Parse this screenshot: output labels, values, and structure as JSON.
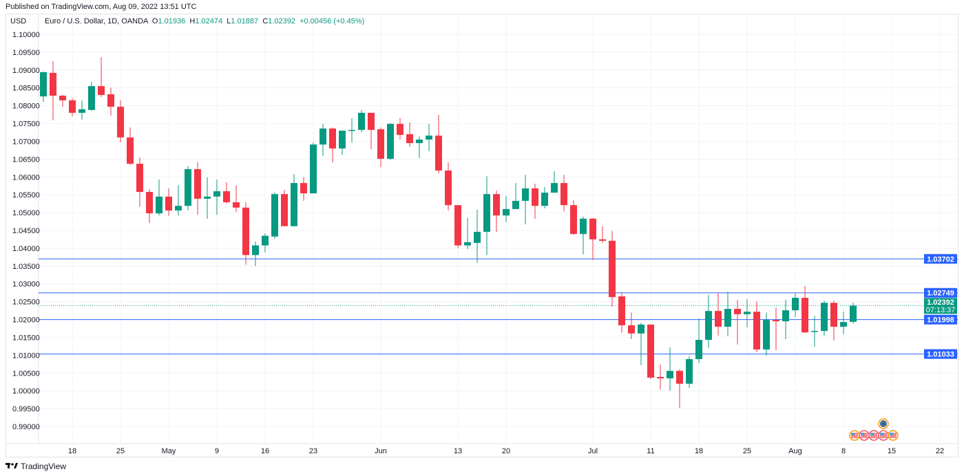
{
  "published": "Published on TradingView.com, Aug 09, 2022 13:51 UTC",
  "legend": {
    "currency": "USD",
    "symbol": "Euro / U.S. Dollar, 1D, OANDA",
    "o_label": "O",
    "o": "1.01936",
    "h_label": "H",
    "h": "1.02474",
    "l_label": "L",
    "l": "1.01887",
    "c_label": "C",
    "c": "1.02392",
    "change": "+0.00456 (+0.45%)"
  },
  "footer": {
    "brand": "TradingView",
    "logo_icon": "tradingview-logo-icon"
  },
  "colors": {
    "up": "#089981",
    "down": "#f23645",
    "level": "#2962ff",
    "grid": "#f0f3fa"
  },
  "chart_data": {
    "type": "candlestick",
    "title": "Euro / U.S. Dollar, 1D, OANDA",
    "ylabel": "USD",
    "ylim": [
      0.99,
      1.1
    ],
    "yticks": [
      "1.10000",
      "1.09500",
      "1.09000",
      "1.08500",
      "1.08000",
      "1.07500",
      "1.07000",
      "1.06500",
      "1.06000",
      "1.05500",
      "1.05000",
      "1.04500",
      "1.04000",
      "1.03500",
      "1.03000",
      "1.02500",
      "1.02000",
      "1.01500",
      "1.01000",
      "1.00500",
      "1.00000",
      "0.99500",
      "0.99000"
    ],
    "xticks": [
      {
        "label": "18",
        "bar": 3
      },
      {
        "label": "25",
        "bar": 8
      },
      {
        "label": "May",
        "bar": 13
      },
      {
        "label": "9",
        "bar": 18
      },
      {
        "label": "16",
        "bar": 23
      },
      {
        "label": "23",
        "bar": 28
      },
      {
        "label": "Jun",
        "bar": 35
      },
      {
        "label": "13",
        "bar": 43
      },
      {
        "label": "20",
        "bar": 48
      },
      {
        "label": "Jul",
        "bar": 57
      },
      {
        "label": "11",
        "bar": 63
      },
      {
        "label": "18",
        "bar": 68
      },
      {
        "label": "25",
        "bar": 73
      },
      {
        "label": "Aug",
        "bar": 78
      },
      {
        "label": "8",
        "bar": 83
      },
      {
        "label": "15",
        "bar": 88
      },
      {
        "label": "22",
        "bar": 93
      }
    ],
    "ohlc": [
      [
        1.0826,
        1.0896,
        1.0811,
        1.0894
      ],
      [
        1.0892,
        1.0925,
        1.0759,
        1.0828
      ],
      [
        1.0828,
        1.083,
        1.0797,
        1.0815
      ],
      [
        1.0815,
        1.0821,
        1.077,
        1.078
      ],
      [
        1.078,
        1.0815,
        1.0761,
        1.079
      ],
      [
        1.0788,
        1.0867,
        1.0786,
        1.0855
      ],
      [
        1.0855,
        1.0936,
        1.0824,
        1.083
      ],
      [
        1.0832,
        1.0851,
        1.0772,
        1.0797
      ],
      [
        1.0797,
        1.0815,
        1.0697,
        1.0711
      ],
      [
        1.0711,
        1.0739,
        1.0633,
        1.0637
      ],
      [
        1.0637,
        1.0655,
        1.0516,
        1.0558
      ],
      [
        1.0558,
        1.0566,
        1.0471,
        1.0498
      ],
      [
        1.0498,
        1.0593,
        1.0492,
        1.0545
      ],
      [
        1.0545,
        1.0568,
        1.0491,
        1.0506
      ],
      [
        1.0506,
        1.0577,
        1.0492,
        1.0519
      ],
      [
        1.0519,
        1.0631,
        1.0506,
        1.0622
      ],
      [
        1.0622,
        1.0641,
        1.0494,
        1.0539
      ],
      [
        1.0539,
        1.0599,
        1.0483,
        1.0545
      ],
      [
        1.0545,
        1.0593,
        1.0494,
        1.056
      ],
      [
        1.056,
        1.0585,
        1.0525,
        1.0529
      ],
      [
        1.0529,
        1.0577,
        1.0502,
        1.0514
      ],
      [
        1.0514,
        1.0529,
        1.0354,
        1.0381
      ],
      [
        1.0381,
        1.0419,
        1.035,
        1.0408
      ],
      [
        1.0408,
        1.0442,
        1.0388,
        1.0435
      ],
      [
        1.0433,
        1.0556,
        1.0427,
        1.0552
      ],
      [
        1.0552,
        1.0564,
        1.0462,
        1.0462
      ],
      [
        1.0462,
        1.0608,
        1.0462,
        1.0583
      ],
      [
        1.0583,
        1.0599,
        1.0533,
        1.0554
      ],
      [
        1.0554,
        1.0697,
        1.0554,
        1.0691
      ],
      [
        1.0691,
        1.0749,
        1.066,
        1.0736
      ],
      [
        1.0736,
        1.0739,
        1.0641,
        1.068
      ],
      [
        1.068,
        1.073,
        1.0662,
        1.073
      ],
      [
        1.073,
        1.0765,
        1.0697,
        1.0732
      ],
      [
        1.0732,
        1.0788,
        1.0726,
        1.078
      ],
      [
        1.078,
        1.078,
        1.0678,
        1.0732
      ],
      [
        1.0734,
        1.0739,
        1.0628,
        1.0651
      ],
      [
        1.0651,
        1.0751,
        1.0647,
        1.0749
      ],
      [
        1.0749,
        1.0765,
        1.0705,
        1.0718
      ],
      [
        1.072,
        1.0753,
        1.0685,
        1.0695
      ],
      [
        1.0695,
        1.0714,
        1.0653,
        1.0705
      ],
      [
        1.0705,
        1.0749,
        1.0672,
        1.0716
      ],
      [
        1.0716,
        1.0774,
        1.061,
        1.0618
      ],
      [
        1.0618,
        1.0641,
        1.0506,
        1.0521
      ],
      [
        1.0521,
        1.0521,
        1.04,
        1.0408
      ],
      [
        1.0408,
        1.0485,
        1.0398,
        1.0417
      ],
      [
        1.0415,
        1.0508,
        1.0359,
        1.0446
      ],
      [
        1.0446,
        1.0602,
        1.0381,
        1.0552
      ],
      [
        1.0552,
        1.0562,
        1.0446,
        1.0492
      ],
      [
        1.0492,
        1.0546,
        1.0473,
        1.051
      ],
      [
        1.051,
        1.0583,
        1.051,
        1.0533
      ],
      [
        1.0533,
        1.0606,
        1.0467,
        1.0568
      ],
      [
        1.0568,
        1.0581,
        1.0483,
        1.0519
      ],
      [
        1.0519,
        1.0572,
        1.0512,
        1.0556
      ],
      [
        1.0556,
        1.0616,
        1.0556,
        1.0583
      ],
      [
        1.0583,
        1.0606,
        1.0504,
        1.0521
      ],
      [
        1.0521,
        1.0535,
        1.0438,
        1.044
      ],
      [
        1.044,
        1.0489,
        1.0383,
        1.0483
      ],
      [
        1.0483,
        1.0485,
        1.0367,
        1.0425
      ],
      [
        1.0425,
        1.0462,
        1.0415,
        1.0421
      ],
      [
        1.0421,
        1.0448,
        1.0236,
        1.0263
      ],
      [
        1.0265,
        1.0276,
        1.0163,
        1.0184
      ],
      [
        1.0184,
        1.022,
        1.0145,
        1.0161
      ],
      [
        1.0161,
        1.0191,
        1.0072,
        1.0186
      ],
      [
        1.0186,
        1.0186,
        1.0033,
        1.0037
      ],
      [
        1.0039,
        1.0074,
        1.0004,
        1.0035
      ],
      [
        1.0035,
        1.0122,
        1.0,
        1.0056
      ],
      [
        1.0056,
        1.006,
        0.9952,
        1.002
      ],
      [
        1.002,
        1.0097,
        1.0008,
        1.0089
      ],
      [
        1.0089,
        1.0203,
        1.0078,
        1.0143
      ],
      [
        1.0143,
        1.0269,
        1.012,
        1.0224
      ],
      [
        1.0224,
        1.0274,
        1.0155,
        1.018
      ],
      [
        1.018,
        1.0278,
        1.0153,
        1.023
      ],
      [
        1.023,
        1.0255,
        1.013,
        1.0215
      ],
      [
        1.0215,
        1.0257,
        1.0178,
        1.0222
      ],
      [
        1.0222,
        1.0251,
        1.0108,
        1.0116
      ],
      [
        1.0116,
        1.022,
        1.0099,
        1.0199
      ],
      [
        1.0199,
        1.0234,
        1.0114,
        1.0195
      ],
      [
        1.0195,
        1.0255,
        1.0145,
        1.0226
      ],
      [
        1.0226,
        1.0274,
        1.0207,
        1.0261
      ],
      [
        1.0261,
        1.0294,
        1.0162,
        1.0164
      ],
      [
        1.0166,
        1.0211,
        1.0124,
        1.0168
      ],
      [
        1.0168,
        1.0253,
        1.0155,
        1.0247
      ],
      [
        1.0247,
        1.0253,
        1.0141,
        1.018
      ],
      [
        1.018,
        1.0222,
        1.0159,
        1.0193
      ],
      [
        1.01936,
        1.02474,
        1.01887,
        1.02392
      ]
    ],
    "levels": [
      {
        "label": "1.03702",
        "value": 1.03702
      },
      {
        "label": "1.02749",
        "value": 1.02749
      },
      {
        "label": "1.01998",
        "value": 1.01998
      },
      {
        "label": "1.01033",
        "value": 1.01033
      }
    ],
    "last_price": {
      "label": "1.02392",
      "value": 1.02392,
      "countdown": "07:13:37"
    },
    "events": [
      {
        "type": "us-flag-icon"
      },
      {
        "type": "us-flag-icon"
      },
      {
        "type": "us-flag-icon"
      },
      {
        "type": "us-flag-icon"
      },
      {
        "type": "us-flag-icon"
      },
      {
        "type": "eu-flag-icon"
      }
    ]
  }
}
